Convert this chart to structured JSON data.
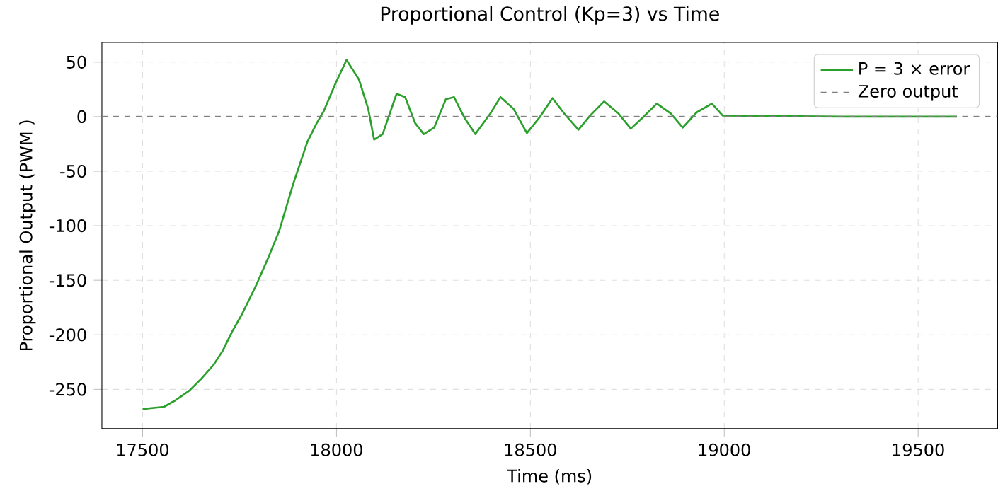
{
  "chart_data": {
    "type": "line",
    "title": "Proportional Control (Kp=3) vs Time",
    "xlabel": "Time (ms)",
    "ylabel": "Proportional Output (PWM )",
    "xlim": [
      17395,
      19705
    ],
    "ylim": [
      -286,
      68
    ],
    "xticks": [
      17500,
      18000,
      18500,
      19000,
      19500
    ],
    "yticks": [
      -250,
      -200,
      -150,
      -100,
      -50,
      0,
      50
    ],
    "grid": true,
    "legend": "top right",
    "line_style": "solid",
    "marker": "none",
    "series": [
      {
        "name": "P = 3 × error",
        "color": "#2ca02c",
        "x": [
          17500,
          17555,
          17585,
          17621,
          17652,
          17682,
          17706,
          17731,
          17755,
          17791,
          17822,
          17852,
          17888,
          17925,
          17949,
          17967,
          17998,
          18026,
          18058,
          18082,
          18097,
          18119,
          18155,
          18177,
          18203,
          18225,
          18252,
          18282,
          18303,
          18330,
          18358,
          18397,
          18423,
          18457,
          18491,
          18523,
          18557,
          18587,
          18624,
          18654,
          18690,
          18727,
          18759,
          18789,
          18826,
          18862,
          18893,
          18929,
          18968,
          18996,
          19300,
          19600
        ],
        "values": [
          -268,
          -266,
          -260,
          -251,
          -240,
          -228,
          -215,
          -197,
          -182,
          -156,
          -131,
          -105,
          -62,
          -23,
          -6,
          5,
          31,
          52,
          34,
          7,
          -21,
          -16,
          21,
          18,
          -6,
          -16,
          -10,
          16,
          18,
          -1,
          -16,
          3,
          18,
          7,
          -15,
          -1,
          17,
          3,
          -12,
          1,
          14,
          3,
          -11,
          -1,
          12,
          3,
          -10,
          4,
          12,
          1,
          0,
          0
        ]
      }
    ],
    "ref_lines": [
      {
        "axis": "y",
        "value": 0,
        "label": "Zero output",
        "color": "#808080",
        "line_style": "dashed"
      }
    ]
  }
}
